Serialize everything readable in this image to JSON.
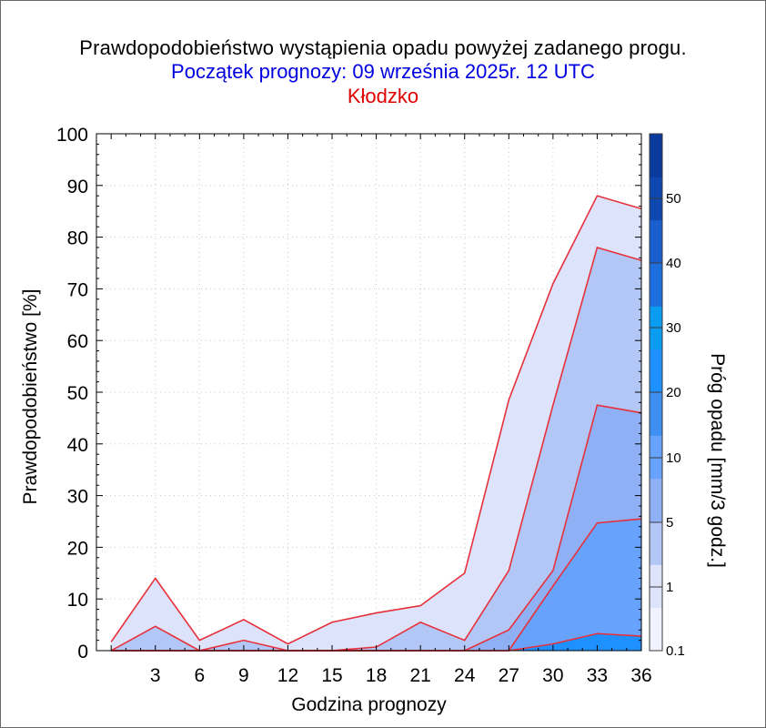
{
  "header": {
    "title": "Prawdopodobieństwo wystąpienia opadu powyżej zadanego progu.",
    "subtitle": "Początek prognozy: 09 września 2025r. 12 UTC",
    "station": "Kłodzko"
  },
  "chart_data": {
    "type": "area",
    "xlabel": "Godzina prognozy",
    "ylabel": "Prawdopodobieństwo [%]",
    "colorbar_label": "Próg opadu [mm/3 godz.]",
    "xlim": [
      -1,
      36
    ],
    "ylim": [
      0,
      100
    ],
    "x_ticks": [
      3,
      6,
      9,
      12,
      15,
      18,
      21,
      24,
      27,
      30,
      33,
      36
    ],
    "y_ticks": [
      0,
      10,
      20,
      30,
      40,
      50,
      60,
      70,
      80,
      90,
      100
    ],
    "grid": true,
    "x": [
      0,
      3,
      6,
      9,
      12,
      15,
      18,
      21,
      24,
      27,
      30,
      33,
      36
    ],
    "series": [
      {
        "name": "0.1",
        "color": "#dde3fb",
        "values": [
          1.7,
          14,
          2,
          6,
          1.3,
          5.5,
          7.3,
          8.7,
          15,
          48.5,
          71,
          88,
          85.5
        ]
      },
      {
        "name": "1",
        "color": "#b3c7f7",
        "values": [
          0,
          4.7,
          0,
          2,
          0,
          0,
          0.7,
          5.5,
          2,
          15.5,
          47.5,
          78,
          75.5
        ]
      },
      {
        "name": "5",
        "color": "#8fb0f5",
        "values": [
          0,
          0,
          0,
          0,
          0,
          0,
          0,
          0,
          0,
          4,
          15.5,
          47.5,
          46
        ]
      },
      {
        "name": "10",
        "color": "#67a3fd",
        "values": [
          0,
          0,
          0,
          0,
          0,
          0,
          0,
          0,
          0,
          0,
          12.5,
          24.7,
          25.5
        ]
      },
      {
        "name": "20",
        "color": "#1e90ff",
        "values": [
          0,
          0,
          0,
          0,
          0,
          0,
          0,
          0,
          0,
          0,
          1.3,
          3.3,
          2.8
        ]
      }
    ],
    "colorbar": {
      "labels": [
        "0.1",
        "1",
        "5",
        "10",
        "20",
        "30",
        "40",
        "50"
      ],
      "colors": [
        "#f0f3ff",
        "#dde3fb",
        "#b3c7f7",
        "#8fb0f5",
        "#67a3fd",
        "#3d8ff2",
        "#1e90ff",
        "#0a9cf0",
        "#1d6fe0",
        "#1a5fd0",
        "#0f47b0",
        "#0a3a9c"
      ]
    }
  }
}
